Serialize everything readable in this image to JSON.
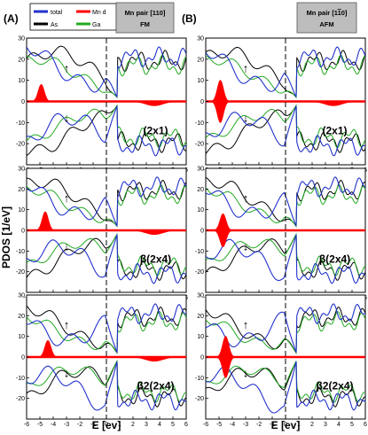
{
  "figure": {
    "column_labels": [
      "(A)",
      "(B)"
    ],
    "ylabel": "PDOS [1/eV]",
    "xlabel_left": "E  [ev]",
    "xlabel_right": "E  [ev]"
  },
  "legend": {
    "entries": [
      {
        "name": "total",
        "color": "#2233cc"
      },
      {
        "name": "Mn d",
        "color": "#ff0000"
      },
      {
        "name": "As",
        "color": "#000000"
      },
      {
        "name": "Ga",
        "color": "#22aa22"
      }
    ]
  },
  "boxes": {
    "left": {
      "line1": "Mn pair [110]",
      "line2": "FM"
    },
    "right": {
      "line1": "Mn pair [1",
      "overbar_digit": "1",
      "line1_end": "0]",
      "line2": "AFM"
    }
  },
  "chart_data": [
    {
      "type": "line",
      "column": "A",
      "magnetic_order": "FM",
      "surface": "(2x1)",
      "spin_up_arrow": "↑",
      "spin_down_arrow": "↓",
      "xlim": [
        -6,
        6
      ],
      "ylim": [
        -30,
        30
      ],
      "yticks": [
        -20,
        -10,
        0,
        10,
        20,
        30
      ],
      "xticks": [
        -6,
        -5,
        -4,
        -3,
        -2,
        -1,
        0,
        1,
        2,
        3,
        4,
        5,
        6
      ],
      "xticklabels": [
        "-6",
        "-5",
        "-4",
        "-3",
        "-2",
        "-1",
        "0",
        "1",
        "2",
        "3",
        "4",
        "5",
        "6"
      ],
      "fermi_level": 0,
      "mn_d_peaks": {
        "up": [
          {
            "x": -4.9,
            "amp": 8
          }
        ],
        "down": [
          {
            "x": 3.6,
            "amp": -2
          }
        ]
      }
    },
    {
      "type": "line",
      "column": "B",
      "magnetic_order": "AFM",
      "surface": "(2x1)",
      "spin_up_arrow": "↑",
      "spin_down_arrow": "↓",
      "xlim": [
        -6,
        6
      ],
      "ylim": [
        -30,
        30
      ],
      "yticks": [
        -20,
        -10,
        0,
        10,
        20,
        30
      ],
      "xticks": [
        -6,
        -5,
        -4,
        -3,
        -2,
        -1,
        0,
        1,
        2,
        3,
        4,
        5,
        6
      ],
      "xticklabels": [
        "-6",
        "-5",
        "-4",
        "-3",
        "-2",
        "-1",
        "0",
        "1",
        "2",
        "3",
        "4",
        "5",
        "6"
      ],
      "fermi_level": 0,
      "mn_d_peaks": {
        "up": [
          {
            "x": -4.9,
            "amp": 10
          }
        ],
        "down": [
          {
            "x": -4.9,
            "amp": -10
          },
          {
            "x": 3.6,
            "amp": -2
          }
        ]
      }
    },
    {
      "type": "line",
      "column": "A",
      "magnetic_order": "FM",
      "surface": "β(2x4)",
      "spin_up_arrow": "↑",
      "spin_down_arrow": "↓",
      "xlim": [
        -6,
        6
      ],
      "ylim": [
        -30,
        30
      ],
      "yticks": [
        -20,
        -10,
        0,
        10,
        20,
        30
      ],
      "xticks": [
        -6,
        -5,
        -4,
        -3,
        -2,
        -1,
        0,
        1,
        2,
        3,
        4,
        5,
        6
      ],
      "xticklabels": [
        "-6",
        "-5",
        "-4",
        "-3",
        "-2",
        "-1",
        "0",
        "1",
        "2",
        "3",
        "4",
        "5",
        "6"
      ],
      "fermi_level": 0,
      "mn_d_peaks": {
        "up": [
          {
            "x": -4.6,
            "amp": 9
          }
        ],
        "down": [
          {
            "x": 3.6,
            "amp": -2
          }
        ]
      }
    },
    {
      "type": "line",
      "column": "B",
      "magnetic_order": "AFM",
      "surface": "β(2x4)",
      "spin_up_arrow": "↑",
      "spin_down_arrow": "↓",
      "xlim": [
        -6,
        6
      ],
      "ylim": [
        -30,
        30
      ],
      "yticks": [
        -20,
        -10,
        0,
        10,
        20,
        30
      ],
      "xticks": [
        -6,
        -5,
        -4,
        -3,
        -2,
        -1,
        0,
        1,
        2,
        3,
        4,
        5,
        6
      ],
      "xticklabels": [
        "-6",
        "-5",
        "-4",
        "-3",
        "-2",
        "-1",
        "0",
        "1",
        "2",
        "3",
        "4",
        "5",
        "6"
      ],
      "fermi_level": 0,
      "mn_d_peaks": {
        "up": [
          {
            "x": -4.7,
            "amp": 8
          }
        ],
        "down": [
          {
            "x": -4.7,
            "amp": -8
          }
        ]
      }
    },
    {
      "type": "line",
      "column": "A",
      "magnetic_order": "FM",
      "surface": "β2(2x4)",
      "spin_up_arrow": "↑",
      "spin_down_arrow": "↓",
      "xlim": [
        -6,
        6
      ],
      "ylim": [
        -30,
        30
      ],
      "yticks": [
        -20,
        -10,
        0,
        10,
        20,
        30
      ],
      "xticks": [
        -6,
        -5,
        -4,
        -3,
        -2,
        -1,
        0,
        1,
        2,
        3,
        4,
        5,
        6
      ],
      "xticklabels": [
        "-6",
        "-5",
        "-4",
        "-3",
        "-2",
        "-1",
        "0",
        "1",
        "2",
        "3",
        "4",
        "5",
        "6"
      ],
      "fermi_level": 0,
      "mn_d_peaks": {
        "up": [
          {
            "x": -4.4,
            "amp": 8
          }
        ],
        "down": [
          {
            "x": 3.6,
            "amp": -2
          }
        ]
      }
    },
    {
      "type": "line",
      "column": "B",
      "magnetic_order": "AFM",
      "surface": "β2(2x4)",
      "spin_up_arrow": "↑",
      "spin_down_arrow": "↓",
      "xlim": [
        -6,
        6
      ],
      "ylim": [
        -30,
        30
      ],
      "yticks": [
        -20,
        -10,
        0,
        10,
        20,
        30
      ],
      "xticks": [
        -6,
        -5,
        -4,
        -3,
        -2,
        -1,
        0,
        1,
        2,
        3,
        4,
        5,
        6
      ],
      "xticklabels": [
        "-6",
        "-5",
        "-4",
        "-3",
        "-2",
        "-1",
        "0",
        "1",
        "2",
        "3",
        "4",
        "5",
        "6"
      ],
      "fermi_level": 0,
      "mn_d_peaks": {
        "up": [
          {
            "x": -4.5,
            "amp": 10
          }
        ],
        "down": [
          {
            "x": -4.5,
            "amp": -10
          }
        ]
      }
    }
  ]
}
